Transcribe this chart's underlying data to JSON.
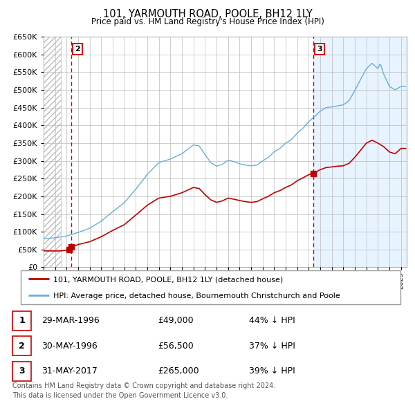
{
  "title": "101, YARMOUTH ROAD, POOLE, BH12 1LY",
  "subtitle": "Price paid vs. HM Land Registry's House Price Index (HPI)",
  "ylim": [
    0,
    650000
  ],
  "yticks": [
    0,
    50000,
    100000,
    150000,
    200000,
    250000,
    300000,
    350000,
    400000,
    450000,
    500000,
    550000,
    600000,
    650000
  ],
  "xlim_start": 1994.0,
  "xlim_end": 2025.5,
  "hpi_color": "#6aaed6",
  "price_color": "#c00000",
  "vline_color": "#cc0000",
  "bg_blue": "#ddeeff",
  "sale_points": [
    {
      "date_num": 1996.245,
      "price": 49000,
      "label": "1"
    },
    {
      "date_num": 1996.413,
      "price": 56500,
      "label": "2"
    },
    {
      "date_num": 2017.413,
      "price": 265000,
      "label": "3"
    }
  ],
  "vlines": [
    {
      "date_num": 1996.413,
      "label": "2"
    },
    {
      "date_num": 2017.413,
      "label": "3"
    }
  ],
  "legend_entries": [
    {
      "label": "101, YARMOUTH ROAD, POOLE, BH12 1LY (detached house)",
      "color": "#c00000"
    },
    {
      "label": "HPI: Average price, detached house, Bournemouth Christchurch and Poole",
      "color": "#6aaed6"
    }
  ],
  "table_rows": [
    {
      "num": "1",
      "date": "29-MAR-1996",
      "price": "£49,000",
      "hpi": "44% ↓ HPI"
    },
    {
      "num": "2",
      "date": "30-MAY-1996",
      "price": "£56,500",
      "hpi": "37% ↓ HPI"
    },
    {
      "num": "3",
      "date": "31-MAY-2017",
      "price": "£265,000",
      "hpi": "39% ↓ HPI"
    }
  ],
  "footnote": "Contains HM Land Registry data © Crown copyright and database right 2024.\nThis data is licensed under the Open Government Licence v3.0.",
  "hatch_end": 1995.5,
  "blue_bg_start": 2017.413
}
